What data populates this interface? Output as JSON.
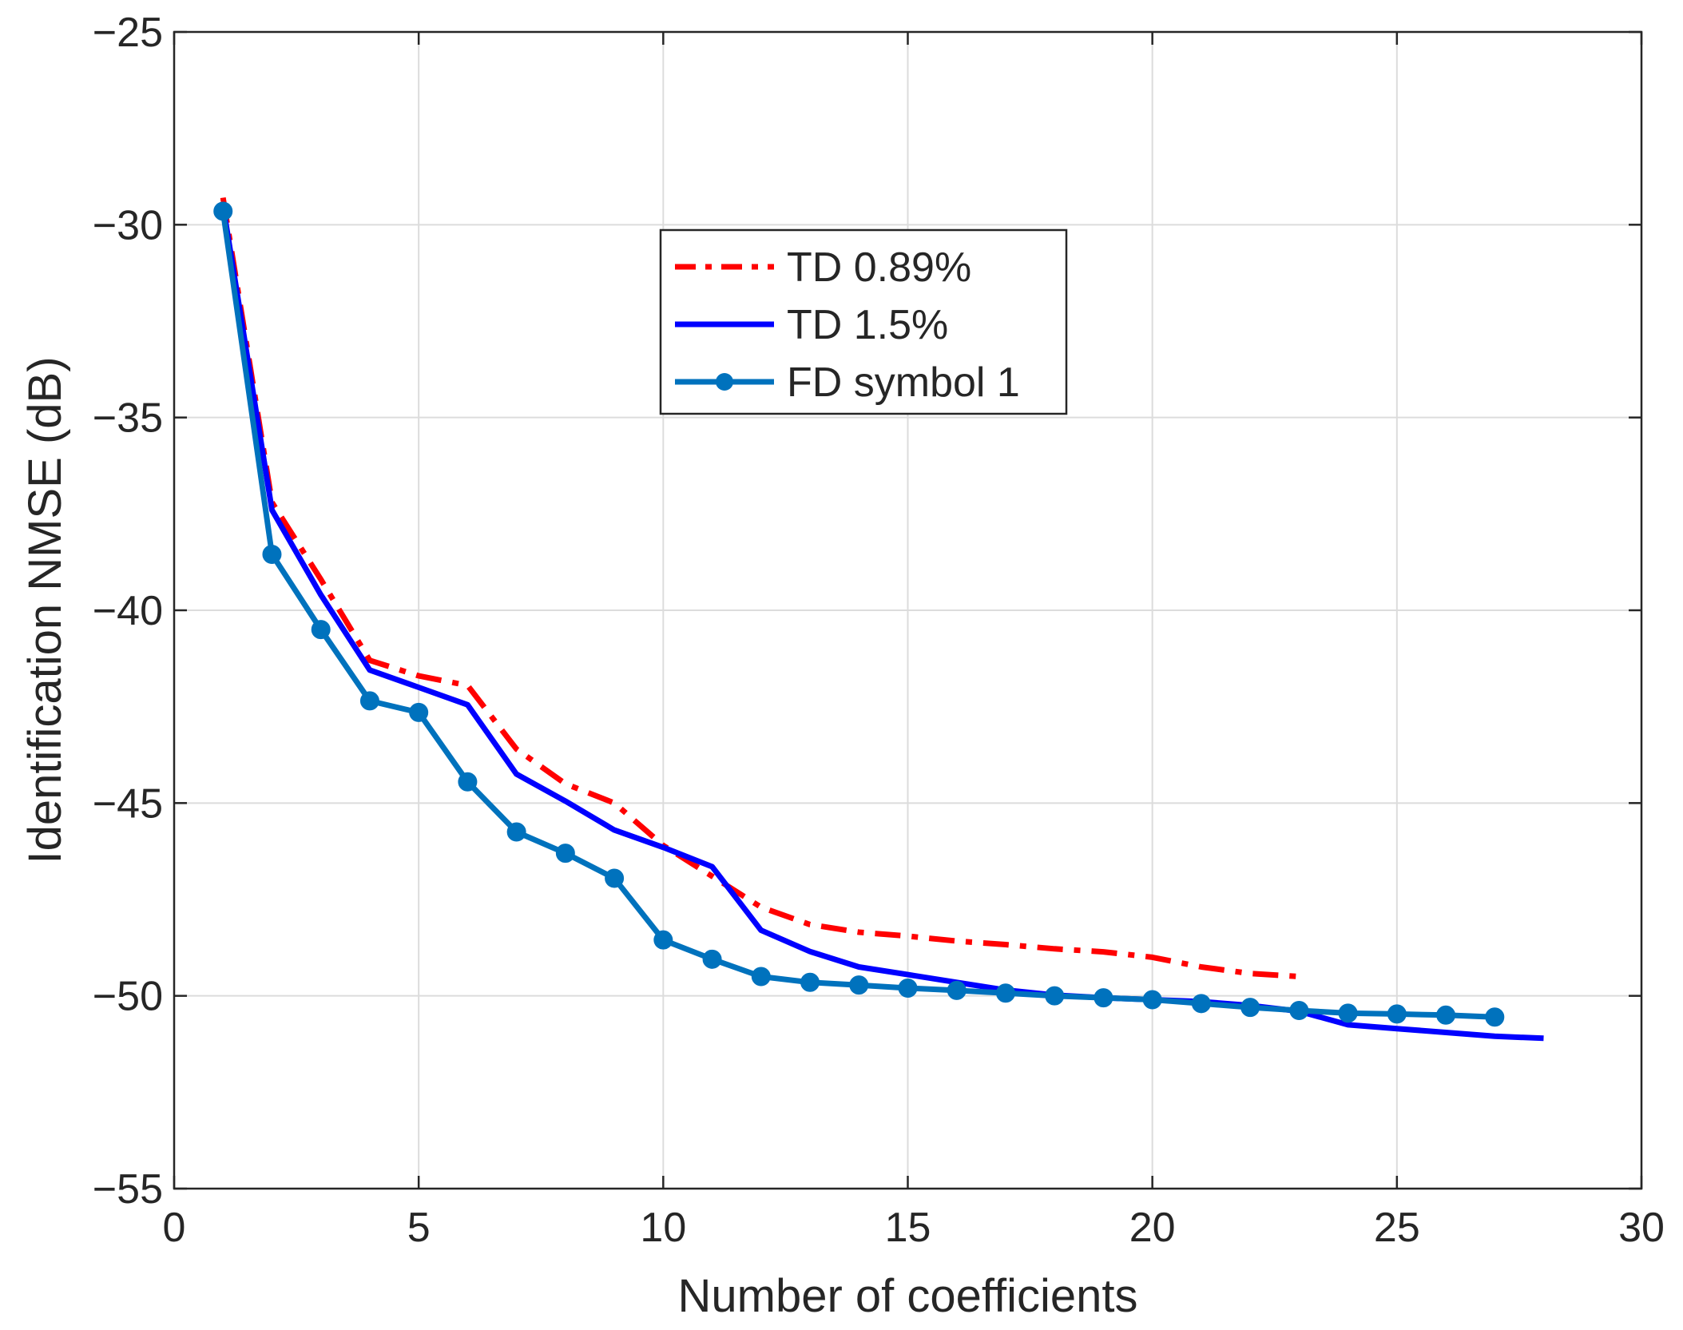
{
  "chart_data": {
    "type": "line",
    "title": "",
    "xlabel": "Number of coefficients",
    "ylabel": "Identification NMSE (dB)",
    "xlim": [
      0,
      30
    ],
    "ylim": [
      -55,
      -25
    ],
    "xticks": [
      0,
      5,
      10,
      15,
      20,
      25,
      30
    ],
    "yticks": [
      -55,
      -50,
      -45,
      -40,
      -35,
      -30,
      -25
    ],
    "xtick_labels": [
      "0",
      "5",
      "10",
      "15",
      "20",
      "25",
      "30"
    ],
    "ytick_labels": [
      "−55",
      "−50",
      "−45",
      "−40",
      "−35",
      "−30",
      "−25"
    ],
    "grid": true,
    "legend_position": "upper-center",
    "series": [
      {
        "name": "TD 0.89%",
        "color": "#ff0000",
        "style": "dash-dot",
        "marker": "none",
        "x": [
          1,
          2,
          3,
          4,
          5,
          6,
          7,
          8,
          9,
          10,
          11,
          12,
          13,
          14,
          15,
          16,
          17,
          18,
          19,
          20,
          21,
          22,
          23
        ],
        "y": [
          -29.3,
          -37.2,
          -39.2,
          -41.3,
          -41.7,
          -41.95,
          -43.6,
          -44.5,
          -45.0,
          -46.1,
          -46.9,
          -47.7,
          -48.15,
          -48.35,
          -48.45,
          -48.58,
          -48.67,
          -48.78,
          -48.86,
          -49.0,
          -49.25,
          -49.42,
          -49.5
        ]
      },
      {
        "name": "TD 1.5%",
        "color": "#0000ff",
        "style": "solid",
        "marker": "none",
        "x": [
          1,
          2,
          3,
          4,
          5,
          6,
          7,
          8,
          9,
          10,
          11,
          12,
          13,
          14,
          15,
          16,
          17,
          18,
          19,
          20,
          21,
          22,
          23,
          24,
          25,
          26,
          27,
          28
        ],
        "y": [
          -29.5,
          -37.4,
          -39.6,
          -41.55,
          -42.0,
          -42.45,
          -44.25,
          -44.95,
          -45.7,
          -46.15,
          -46.65,
          -48.3,
          -48.85,
          -49.25,
          -49.45,
          -49.65,
          -49.85,
          -49.98,
          -50.05,
          -50.1,
          -50.15,
          -50.25,
          -50.4,
          -50.75,
          -50.85,
          -50.95,
          -51.05,
          -51.1
        ]
      },
      {
        "name": "FD symbol 1",
        "color": "#0072bd",
        "style": "solid",
        "marker": "circle",
        "x": [
          1,
          2,
          3,
          4,
          5,
          6,
          7,
          8,
          9,
          10,
          11,
          12,
          13,
          14,
          15,
          16,
          17,
          18,
          19,
          20,
          21,
          22,
          23,
          24,
          25,
          26,
          27
        ],
        "y": [
          -29.65,
          -38.55,
          -40.5,
          -42.35,
          -42.65,
          -44.45,
          -45.75,
          -46.3,
          -46.95,
          -48.55,
          -49.05,
          -49.5,
          -49.65,
          -49.72,
          -49.8,
          -49.86,
          -49.93,
          -50.0,
          -50.05,
          -50.1,
          -50.2,
          -50.3,
          -50.38,
          -50.45,
          -50.47,
          -50.5,
          -50.55
        ]
      }
    ]
  }
}
